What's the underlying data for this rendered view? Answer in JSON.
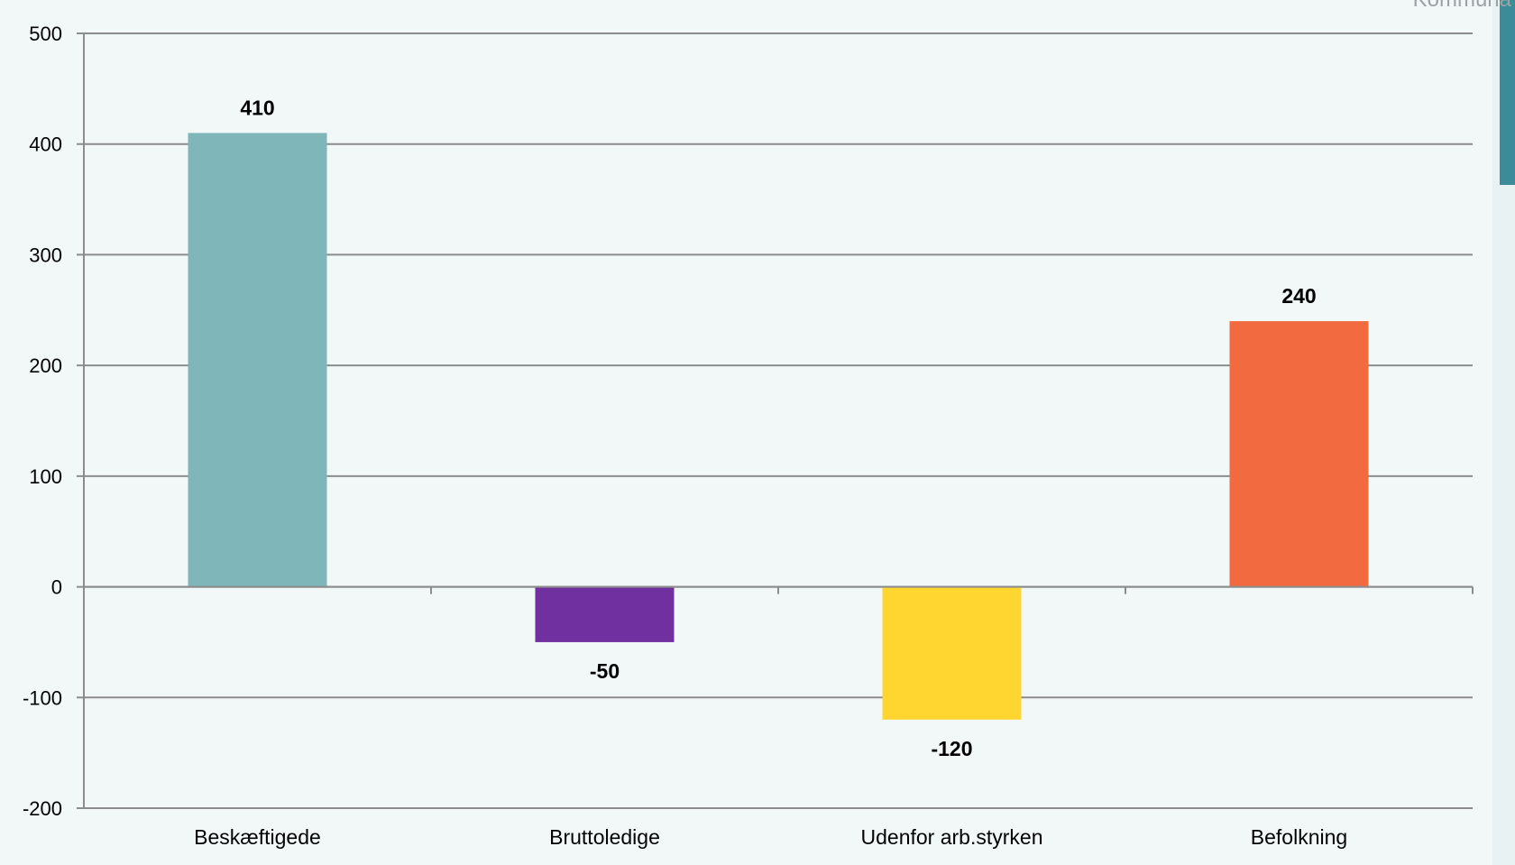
{
  "corner_text": "Kommuna",
  "colors": {
    "background": "#f2f7f7",
    "gridline": "#8c8c8c",
    "axis": "#8c8c8c"
  },
  "chart_data": {
    "type": "bar",
    "title": "",
    "xlabel": "",
    "ylabel": "",
    "categories": [
      "Beskæftigede",
      "Bruttoledige",
      "Udenfor arb.styrken",
      "Befolkning"
    ],
    "values": [
      410,
      -50,
      -120,
      240
    ],
    "data_labels": [
      "410",
      "-50",
      "-120",
      "240"
    ],
    "bar_colors": [
      "#7fb6ba",
      "#7030a0",
      "#ffd530",
      "#f26a40"
    ],
    "ylim": [
      -200,
      500
    ],
    "yticks": [
      -200,
      -100,
      0,
      100,
      200,
      300,
      400,
      500
    ],
    "grid": true,
    "legend": "none"
  }
}
